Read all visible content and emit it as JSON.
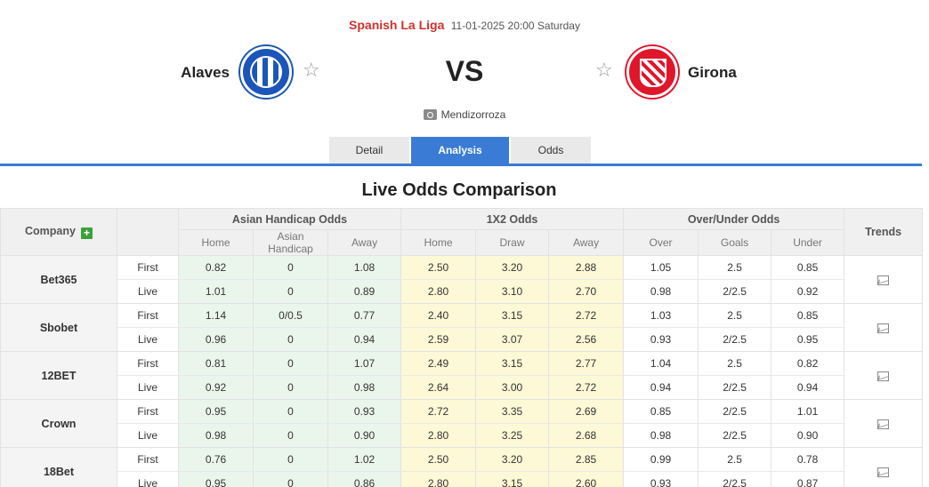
{
  "match": {
    "league": "Spanish La Liga",
    "datetime": "11-01-2025 20:00 Saturday",
    "home_team": "Alaves",
    "away_team": "Girona",
    "vs_label": "VS",
    "venue": "Mendizorroza",
    "home_logo_icon": "alaves-crest-icon",
    "away_logo_icon": "girona-crest-icon",
    "favorite_icon": "star-outline-icon"
  },
  "tabs": [
    {
      "label": "Detail",
      "active": false
    },
    {
      "label": "Analysis",
      "active": true
    },
    {
      "label": "Odds",
      "active": false
    }
  ],
  "section_title": "Live Odds Comparison",
  "table": {
    "company_header": "Company",
    "trends_header": "Trends",
    "groups": {
      "asian_handicap": "Asian Handicap Odds",
      "x12": "1X2 Odds",
      "over_under": "Over/Under Odds"
    },
    "subheaders": {
      "ah": [
        "Home",
        "Asian Handicap",
        "Away"
      ],
      "x12": [
        "Home",
        "Draw",
        "Away"
      ],
      "ou": [
        "Over",
        "Goals",
        "Under"
      ]
    },
    "companies": [
      {
        "name": "Bet365",
        "first": {
          "type": "First",
          "ah": [
            "0.82",
            "0",
            "1.08"
          ],
          "x12": [
            "2.50",
            "3.20",
            "2.88"
          ],
          "ou": [
            "1.05",
            "2.5",
            "0.85"
          ]
        },
        "live": {
          "type": "Live",
          "ah": [
            "1.01",
            "0",
            "0.89"
          ],
          "x12": [
            "2.80",
            "3.10",
            "2.70"
          ],
          "ou": [
            "0.98",
            "2/2.5",
            "0.92"
          ]
        }
      },
      {
        "name": "Sbobet",
        "first": {
          "type": "First",
          "ah": [
            "1.14",
            "0/0.5",
            "0.77"
          ],
          "x12": [
            "2.40",
            "3.15",
            "2.72"
          ],
          "ou": [
            "1.03",
            "2.5",
            "0.85"
          ]
        },
        "live": {
          "type": "Live",
          "ah": [
            "0.96",
            "0",
            "0.94"
          ],
          "x12": [
            "2.59",
            "3.07",
            "2.56"
          ],
          "ou": [
            "0.93",
            "2/2.5",
            "0.95"
          ]
        }
      },
      {
        "name": "12BET",
        "first": {
          "type": "First",
          "ah": [
            "0.81",
            "0",
            "1.07"
          ],
          "x12": [
            "2.49",
            "3.15",
            "2.77"
          ],
          "ou": [
            "1.04",
            "2.5",
            "0.82"
          ]
        },
        "live": {
          "type": "Live",
          "ah": [
            "0.92",
            "0",
            "0.98"
          ],
          "x12": [
            "2.64",
            "3.00",
            "2.72"
          ],
          "ou": [
            "0.94",
            "2/2.5",
            "0.94"
          ]
        }
      },
      {
        "name": "Crown",
        "first": {
          "type": "First",
          "ah": [
            "0.95",
            "0",
            "0.93"
          ],
          "x12": [
            "2.72",
            "3.35",
            "2.69"
          ],
          "ou": [
            "0.85",
            "2/2.5",
            "1.01"
          ]
        },
        "live": {
          "type": "Live",
          "ah": [
            "0.98",
            "0",
            "0.90"
          ],
          "x12": [
            "2.80",
            "3.25",
            "2.68"
          ],
          "ou": [
            "0.98",
            "2/2.5",
            "0.90"
          ]
        }
      },
      {
        "name": "18Bet",
        "first": {
          "type": "First",
          "ah": [
            "0.76",
            "0",
            "1.02"
          ],
          "x12": [
            "2.50",
            "3.20",
            "2.85"
          ],
          "ou": [
            "0.99",
            "2.5",
            "0.78"
          ]
        },
        "live": {
          "type": "Live",
          "ah": [
            "0.95",
            "0",
            "0.86"
          ],
          "x12": [
            "2.80",
            "3.15",
            "2.60"
          ],
          "ou": [
            "0.93",
            "2/2.5",
            "0.87"
          ]
        }
      }
    ]
  }
}
